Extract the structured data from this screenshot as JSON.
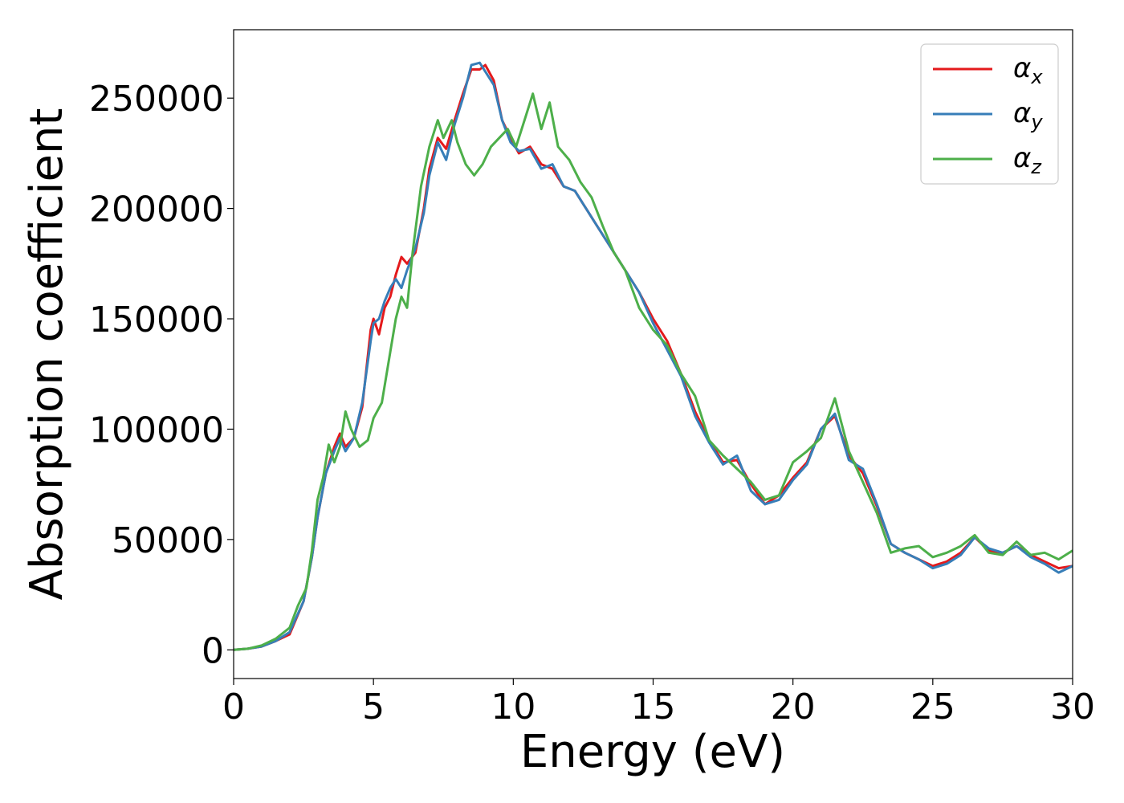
{
  "chart_data": {
    "type": "line",
    "title": "",
    "xlabel": "Energy (eV)",
    "ylabel": "Absorption coefficient",
    "xlim": [
      0,
      30
    ],
    "ylim": [
      -13000,
      281000
    ],
    "xticks": [
      0,
      5,
      10,
      15,
      20,
      25,
      30
    ],
    "yticks": [
      0,
      50000,
      100000,
      150000,
      200000,
      250000
    ],
    "grid": false,
    "legend_position": "top-right",
    "series": [
      {
        "name": "αx",
        "legend_symbol": "α",
        "legend_subscript": "x",
        "color": "#e41a1c",
        "x": [
          0,
          0.5,
          1.0,
          1.5,
          2.0,
          2.5,
          2.8,
          3.0,
          3.3,
          3.6,
          3.8,
          4.0,
          4.3,
          4.6,
          4.9,
          5.0,
          5.2,
          5.4,
          5.6,
          5.8,
          6.0,
          6.2,
          6.5,
          6.8,
          7.0,
          7.3,
          7.6,
          7.9,
          8.2,
          8.5,
          8.8,
          9.0,
          9.3,
          9.6,
          9.9,
          10.2,
          10.6,
          11.0,
          11.4,
          11.8,
          12.2,
          12.6,
          13.0,
          13.5,
          14.0,
          14.5,
          15.0,
          15.5,
          16.0,
          16.5,
          17.0,
          17.5,
          18.0,
          18.5,
          19.0,
          19.5,
          20.0,
          20.5,
          21.0,
          21.5,
          22.0,
          22.5,
          23.0,
          23.5,
          24.0,
          24.5,
          25.0,
          25.5,
          26.0,
          26.5,
          27.0,
          27.5,
          28.0,
          28.5,
          29.0,
          29.5,
          30.0
        ],
        "y": [
          0,
          500,
          1500,
          4000,
          7000,
          22000,
          42000,
          60000,
          80000,
          92000,
          98000,
          92000,
          96000,
          110000,
          145000,
          150000,
          143000,
          155000,
          160000,
          170000,
          178000,
          175000,
          180000,
          200000,
          218000,
          232000,
          227000,
          240000,
          252000,
          263000,
          263000,
          265000,
          258000,
          240000,
          232000,
          225000,
          228000,
          220000,
          218000,
          210000,
          208000,
          200000,
          192000,
          182000,
          172000,
          162000,
          150000,
          140000,
          125000,
          108000,
          95000,
          85000,
          86000,
          75000,
          66000,
          70000,
          78000,
          85000,
          100000,
          106000,
          88000,
          80000,
          65000,
          48000,
          44000,
          41000,
          38000,
          40000,
          44000,
          51000,
          45000,
          44000,
          47000,
          43000,
          40000,
          37000,
          38000
        ]
      },
      {
        "name": "αy",
        "legend_symbol": "α",
        "legend_subscript": "y",
        "color": "#377eb8",
        "x": [
          0,
          0.5,
          1.0,
          1.5,
          2.0,
          2.5,
          2.8,
          3.0,
          3.3,
          3.6,
          3.8,
          4.0,
          4.3,
          4.6,
          4.9,
          5.0,
          5.2,
          5.4,
          5.6,
          5.8,
          6.0,
          6.2,
          6.5,
          6.8,
          7.0,
          7.3,
          7.6,
          7.9,
          8.2,
          8.5,
          8.8,
          9.0,
          9.3,
          9.6,
          9.9,
          10.2,
          10.6,
          11.0,
          11.4,
          11.8,
          12.2,
          12.6,
          13.0,
          13.5,
          14.0,
          14.5,
          15.0,
          15.5,
          16.0,
          16.5,
          17.0,
          17.5,
          18.0,
          18.5,
          19.0,
          19.5,
          20.0,
          20.5,
          21.0,
          21.5,
          22.0,
          22.5,
          23.0,
          23.5,
          24.0,
          24.5,
          25.0,
          25.5,
          26.0,
          26.5,
          27.0,
          27.5,
          28.0,
          28.5,
          29.0,
          29.5,
          30.0
        ],
        "y": [
          0,
          500,
          1500,
          4000,
          8000,
          22000,
          42000,
          60000,
          80000,
          90000,
          96000,
          90000,
          96000,
          112000,
          140000,
          148000,
          150000,
          158000,
          164000,
          168000,
          164000,
          172000,
          182000,
          198000,
          215000,
          230000,
          222000,
          238000,
          250000,
          265000,
          266000,
          262000,
          256000,
          240000,
          230000,
          226000,
          227000,
          218000,
          220000,
          210000,
          208000,
          200000,
          192000,
          182000,
          172000,
          162000,
          148000,
          136000,
          124000,
          106000,
          94000,
          84000,
          88000,
          72000,
          66000,
          68000,
          77000,
          84000,
          100000,
          107000,
          86000,
          82000,
          66000,
          48000,
          44000,
          41000,
          37000,
          39000,
          43000,
          51000,
          46000,
          44000,
          47000,
          42000,
          39000,
          35000,
          38000
        ]
      },
      {
        "name": "αz",
        "legend_symbol": "α",
        "legend_subscript": "z",
        "color": "#4daf4a",
        "x": [
          0,
          0.5,
          1.0,
          1.5,
          2.0,
          2.3,
          2.6,
          2.8,
          3.0,
          3.2,
          3.4,
          3.6,
          3.8,
          4.0,
          4.2,
          4.5,
          4.8,
          5.0,
          5.3,
          5.6,
          5.8,
          6.0,
          6.2,
          6.4,
          6.7,
          7.0,
          7.3,
          7.5,
          7.8,
          8.0,
          8.3,
          8.6,
          8.9,
          9.2,
          9.5,
          9.8,
          10.1,
          10.4,
          10.7,
          11.0,
          11.3,
          11.6,
          12.0,
          12.4,
          12.8,
          13.2,
          13.6,
          14.0,
          14.5,
          15.0,
          15.5,
          16.0,
          16.5,
          17.0,
          17.5,
          18.0,
          18.5,
          19.0,
          19.5,
          20.0,
          20.5,
          21.0,
          21.5,
          22.0,
          22.5,
          23.0,
          23.5,
          24.0,
          24.5,
          25.0,
          25.5,
          26.0,
          26.5,
          27.0,
          27.5,
          28.0,
          28.5,
          29.0,
          29.5,
          30.0
        ],
        "y": [
          0,
          500,
          2000,
          5000,
          10000,
          20000,
          28000,
          45000,
          68000,
          78000,
          93000,
          85000,
          92000,
          108000,
          100000,
          92000,
          95000,
          105000,
          112000,
          135000,
          150000,
          160000,
          155000,
          180000,
          210000,
          228000,
          240000,
          232000,
          240000,
          230000,
          220000,
          215000,
          220000,
          228000,
          232000,
          236000,
          228000,
          240000,
          252000,
          236000,
          248000,
          228000,
          222000,
          212000,
          205000,
          192000,
          180000,
          172000,
          155000,
          145000,
          138000,
          125000,
          115000,
          95000,
          88000,
          82000,
          76000,
          68000,
          70000,
          85000,
          90000,
          96000,
          114000,
          90000,
          76000,
          62000,
          44000,
          46000,
          47000,
          42000,
          44000,
          47000,
          52000,
          44000,
          43000,
          49000,
          43000,
          44000,
          41000,
          45000
        ]
      }
    ]
  }
}
